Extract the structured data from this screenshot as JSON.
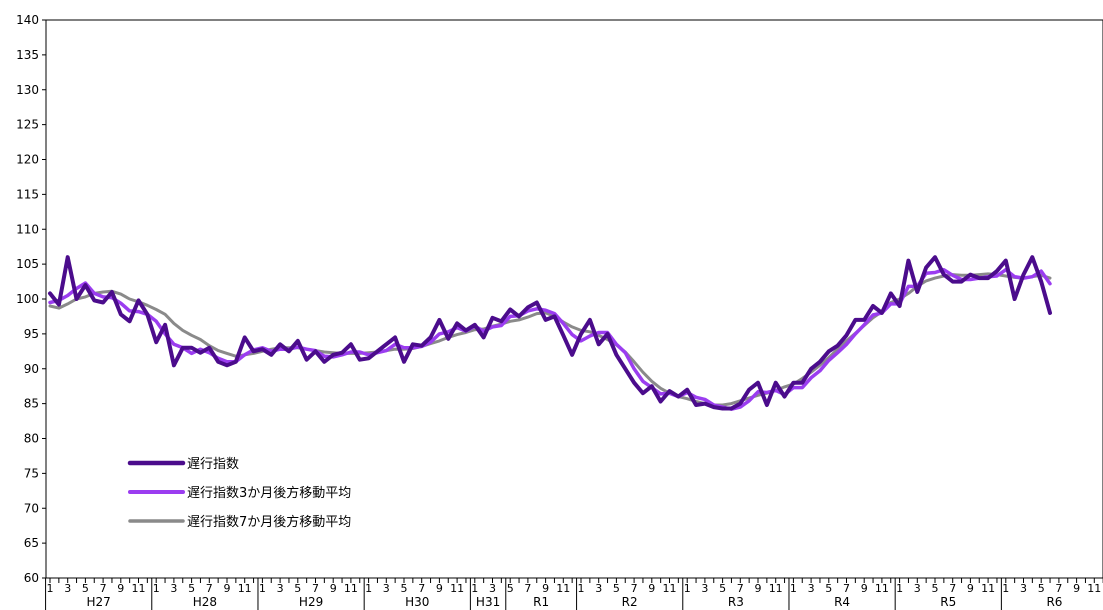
{
  "chart_data": {
    "type": "line",
    "title": "",
    "xlabel": "",
    "ylabel": "",
    "ylim": [
      60,
      140
    ],
    "yticks": [
      60,
      65,
      70,
      75,
      80,
      85,
      90,
      95,
      100,
      105,
      110,
      115,
      120,
      125,
      130,
      135,
      140
    ],
    "grid": false,
    "legend_position": "bottom-left",
    "month_tick_labels": [
      "1",
      "3",
      "5",
      "7",
      "9",
      "11"
    ],
    "year_groups": [
      {
        "label": "H27",
        "months": 12
      },
      {
        "label": "H28",
        "months": 12
      },
      {
        "label": "H29",
        "months": 12
      },
      {
        "label": "H30",
        "months": 12
      },
      {
        "label": "H31",
        "months": 4
      },
      {
        "label": "R1",
        "months": 8
      },
      {
        "label": "R2",
        "months": 12
      },
      {
        "label": "R3",
        "months": 12
      },
      {
        "label": "R4",
        "months": 12
      },
      {
        "label": "R5",
        "months": 12
      },
      {
        "label": "R6",
        "months": 12
      }
    ],
    "series": [
      {
        "name": "遅行指数",
        "color": "#4b0c8c",
        "values": [
          100.8,
          99.2,
          106.0,
          100.0,
          102.0,
          99.8,
          99.5,
          101.0,
          97.8,
          96.8,
          99.8,
          97.8,
          93.8,
          96.3,
          90.5,
          93.0,
          93.0,
          92.3,
          93.0,
          91.0,
          90.5,
          91.0,
          94.5,
          92.5,
          92.8,
          92.0,
          93.5,
          92.5,
          94.0,
          91.3,
          92.5,
          91.0,
          92.0,
          92.3,
          93.5,
          91.3,
          91.5,
          92.5,
          93.5,
          94.5,
          91.0,
          93.5,
          93.3,
          94.5,
          97.0,
          94.3,
          96.5,
          95.5,
          96.3,
          94.5,
          97.3,
          96.8,
          98.5,
          97.5,
          98.8,
          99.5,
          97.0,
          97.5,
          94.8,
          92.0,
          95.0,
          97.0,
          93.5,
          95.0,
          92.0,
          90.0,
          88.0,
          86.5,
          87.5,
          85.3,
          86.8,
          86.0,
          87.0,
          84.8,
          85.0,
          84.5,
          84.3,
          84.3,
          85.0,
          87.0,
          88.0,
          84.8,
          88.0,
          86.0,
          88.0,
          88.0,
          90.0,
          91.0,
          92.5,
          93.3,
          94.8,
          97.0,
          97.0,
          99.0,
          98.0,
          100.8,
          99.0,
          105.5,
          101.0,
          104.5,
          106.0,
          103.5,
          102.5,
          102.5,
          103.5,
          103.0,
          103.0,
          104.0,
          105.5,
          100.0,
          103.5,
          106.0,
          102.5,
          98.0
        ]
      },
      {
        "name": "遅行指数3か月後方移動平均",
        "color": "#9b3df0",
        "values": [
          99.5,
          99.8,
          100.5,
          101.5,
          102.3,
          100.8,
          100.3,
          100.2,
          99.4,
          98.3,
          98.2,
          97.8,
          96.8,
          95.0,
          93.5,
          93.0,
          92.2,
          92.8,
          92.3,
          91.5,
          91.0,
          91.0,
          92.0,
          92.7,
          93.0,
          92.5,
          92.8,
          92.8,
          93.1,
          92.8,
          92.6,
          91.8,
          91.7,
          92.0,
          92.4,
          92.4,
          92.0,
          92.3,
          92.6,
          93.5,
          93.0,
          93.0,
          93.2,
          93.8,
          95.0,
          95.3,
          95.9,
          95.4,
          96.1,
          95.4,
          96.0,
          96.2,
          97.5,
          97.6,
          98.3,
          98.6,
          98.4,
          97.9,
          96.5,
          94.9,
          94.0,
          94.7,
          95.2,
          95.2,
          93.5,
          92.3,
          90.0,
          88.2,
          87.3,
          86.4,
          86.5,
          86.0,
          86.6,
          85.9,
          85.6,
          84.8,
          84.5,
          84.2,
          84.5,
          85.4,
          86.7,
          86.6,
          86.9,
          86.3,
          87.3,
          87.3,
          88.7,
          89.7,
          91.2,
          92.3,
          93.5,
          95.0,
          96.3,
          97.7,
          98.0,
          99.3,
          99.3,
          101.8,
          101.8,
          103.7,
          103.8,
          104.2,
          103.4,
          102.8,
          102.8,
          103.0,
          103.2,
          103.3,
          104.2,
          103.2,
          103.0,
          103.2,
          104.0,
          102.2
        ]
      },
      {
        "name": "遅行指数7か月後方移動平均",
        "color": "#8a8a8a",
        "values": [
          99.0,
          98.7,
          99.3,
          100.0,
          100.3,
          100.8,
          101.0,
          101.1,
          100.7,
          100.0,
          99.6,
          99.1,
          98.5,
          97.8,
          96.5,
          95.5,
          94.8,
          94.2,
          93.3,
          92.6,
          92.2,
          91.8,
          92.0,
          92.2,
          92.5,
          92.8,
          93.0,
          93.0,
          93.0,
          92.8,
          92.6,
          92.4,
          92.3,
          92.2,
          92.2,
          92.2,
          92.3,
          92.4,
          92.6,
          92.8,
          92.8,
          92.9,
          93.2,
          93.6,
          94.0,
          94.5,
          94.9,
          95.2,
          95.6,
          95.7,
          96.1,
          96.4,
          96.8,
          97.0,
          97.4,
          97.9,
          98.0,
          97.5,
          96.7,
          96.0,
          95.5,
          95.3,
          94.8,
          94.2,
          93.4,
          92.4,
          91.0,
          89.5,
          88.2,
          87.2,
          86.5,
          86.0,
          85.7,
          85.3,
          85.0,
          84.8,
          84.8,
          85.0,
          85.4,
          85.8,
          86.2,
          86.5,
          86.9,
          87.4,
          87.8,
          88.6,
          89.5,
          90.5,
          91.6,
          92.8,
          94.0,
          95.1,
          96.2,
          97.3,
          98.2,
          99.5,
          100.0,
          100.8,
          101.8,
          102.6,
          103.0,
          103.3,
          103.5,
          103.4,
          103.4,
          103.5,
          103.6,
          103.5,
          103.3,
          103.1,
          103.0,
          103.2,
          103.4,
          103.0
        ]
      }
    ]
  }
}
